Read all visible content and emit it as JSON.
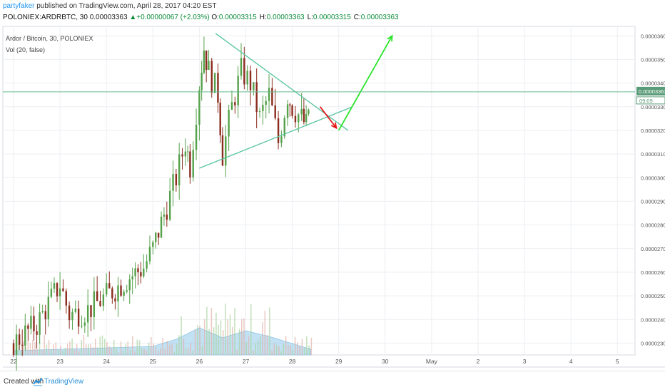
{
  "header": {
    "author": "partyfaker",
    "published": " published on TradingView.com, April 28, 2017 04:20 EST",
    "symbol": "POLONIEX:ARDRBTC, 30",
    "price": "0.00003363",
    "change_arrow": "▲",
    "change": "+0.00000067 (+2.03%)",
    "o_label": "O:",
    "o_value": "0.00003315",
    "h_label": "H:",
    "h_value": "0.00003363",
    "l_label": "L:",
    "l_value": "0.00003315",
    "c_label": "C:",
    "c_value": "0.00003363"
  },
  "legend": {
    "title": "Ardor / Bitcoin, 30, POLONIEX",
    "indicator": "Vol (20, false)"
  },
  "footer": {
    "created_with": "Created with",
    "brand": "TradingView"
  },
  "colors": {
    "up_candle": "#55a14a",
    "down_candle": "#8b2c1e",
    "grid": "#eceef2",
    "triangle": "#56c49e",
    "target_arrow": "#29e52a",
    "warn_arrow": "#e31515",
    "last_price_line": "#66b98f",
    "last_price_tag": "#5a9b78",
    "volume_area": "#8fc8ea"
  },
  "chart_data": {
    "type": "candlestick",
    "y_axis_labels": [
      "0.00003600",
      "0.00003500",
      "0.00003400",
      "0.00003300",
      "0.00003200",
      "0.00003100",
      "0.00003000",
      "0.00002900",
      "0.00002800",
      "0.00002700",
      "0.00002600",
      "0.00002500",
      "0.00002400",
      "0.00002300"
    ],
    "x_axis_labels": [
      "22",
      "23",
      "24",
      "25",
      "26",
      "27",
      "28",
      "29",
      "30",
      "May",
      "2",
      "3",
      "4",
      "5"
    ],
    "ylim": [
      2.25e-05,
      3.64e-05
    ],
    "last_price": "0.00003363",
    "countdown": "09:09",
    "price_path": [
      [
        "22",
        2.3e-05
      ],
      [
        "22.5",
        2.38e-05
      ],
      [
        "23",
        2.55e-05
      ],
      [
        "23.2",
        2.42e-05
      ],
      [
        "23.6",
        2.44e-05
      ],
      [
        "24",
        2.5e-05
      ],
      [
        "24.5",
        2.58e-05
      ],
      [
        "24.8",
        2.62e-05
      ],
      [
        "25",
        2.7e-05
      ],
      [
        "25.3",
        2.88e-05
      ],
      [
        "25.5",
        3e-05
      ],
      [
        "25.7",
        3.15e-05
      ],
      [
        "25.8",
        3.05e-05
      ],
      [
        "26",
        3.4e-05
      ],
      [
        "26.1",
        3.55e-05
      ],
      [
        "26.2",
        3.45e-05
      ],
      [
        "26.4",
        3.35e-05
      ],
      [
        "26.5",
        3.1e-05
      ],
      [
        "26.7",
        3.3e-05
      ],
      [
        "26.9",
        3.45e-05
      ],
      [
        "27.1",
        3.4e-05
      ],
      [
        "27.3",
        3.25e-05
      ],
      [
        "27.5",
        3.35e-05
      ],
      [
        "27.7",
        3.15e-05
      ],
      [
        "27.9",
        3.35e-05
      ],
      [
        "28",
        3.3e-05
      ],
      [
        "28.2",
        3.25e-05
      ],
      [
        "28.3",
        3.22e-05
      ],
      [
        "28.4",
        3.36e-05
      ]
    ],
    "volume_area": [
      [
        "22",
        0.15
      ],
      [
        "23",
        0.2
      ],
      [
        "24",
        0.25
      ],
      [
        "25",
        0.3
      ],
      [
        "25.5",
        0.55
      ],
      [
        "26",
        0.95
      ],
      [
        "26.5",
        0.6
      ],
      [
        "27",
        0.85
      ],
      [
        "27.5",
        0.65
      ],
      [
        "28",
        0.4
      ],
      [
        "28.4",
        0.2
      ]
    ],
    "annotations": [
      {
        "name": "triangle-upper",
        "from": [
          "26.35",
          3.61e-05
        ],
        "to": [
          "29.2",
          3.2e-05
        ]
      },
      {
        "name": "triangle-lower",
        "from": [
          "26",
          3.04e-05
        ],
        "to": [
          "29.3",
          3.3e-05
        ]
      },
      {
        "name": "bearish-arrow",
        "from": [
          "28.6",
          3.3e-05
        ],
        "to": [
          "28.95",
          3.21e-05
        ]
      },
      {
        "name": "bullish-arrow",
        "from": [
          "29",
          3.2e-05
        ],
        "to": [
          "30.15",
          3.6e-05
        ]
      }
    ]
  }
}
